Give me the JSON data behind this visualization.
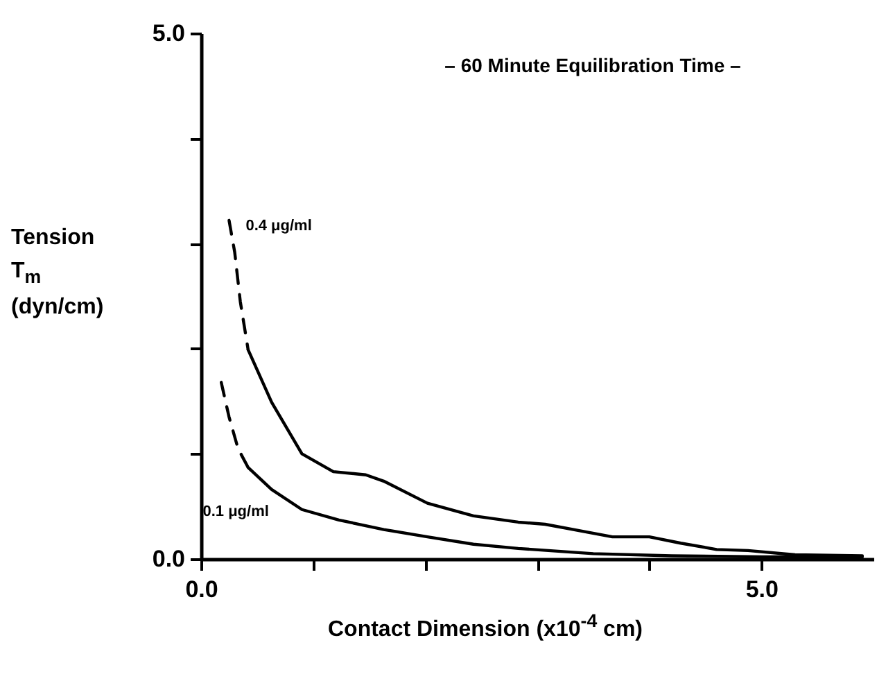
{
  "chart_data": {
    "type": "line",
    "title": "– 60 Minute Equilibration Time –",
    "xlabel": "Contact Dimension (x10$^{-4}$ cm)",
    "ylabel": "Tension T$_{m}$ (dyn/cm)",
    "xlim": [
      0,
      6
    ],
    "ylim": [
      0,
      5
    ],
    "xticks": [
      {
        "value": 0,
        "label": "0.0"
      },
      {
        "value": 1,
        "label": null
      },
      {
        "value": 2,
        "label": null
      },
      {
        "value": 3,
        "label": null
      },
      {
        "value": 4,
        "label": null
      },
      {
        "value": 5,
        "label": "5.0"
      }
    ],
    "yticks": [
      {
        "value": 0,
        "label": "0.0"
      },
      {
        "value": 1,
        "label": null
      },
      {
        "value": 2,
        "label": null
      },
      {
        "value": 3,
        "label": null
      },
      {
        "value": 4,
        "label": null
      },
      {
        "value": 5,
        "label": "5.0"
      }
    ],
    "grid": false,
    "marker": "none",
    "series": [
      {
        "name": "0.4 μg/ml",
        "color": "#000000",
        "line_style": "dashed",
        "x": [
          0.25,
          0.3,
          0.35,
          0.42
        ],
        "values": [
          3.22,
          2.92,
          2.45,
          1.99
        ]
      },
      {
        "color": "#000000",
        "line_style": "solid",
        "x": [
          0.42,
          0.63,
          0.9,
          1.18,
          1.47,
          1.63,
          2.02,
          2.43,
          2.83,
          3.07,
          3.67,
          4.0,
          4.28,
          4.6,
          4.88,
          5.3,
          5.9
        ],
        "values": [
          1.99,
          1.49,
          1.0,
          0.83,
          0.8,
          0.74,
          0.53,
          0.41,
          0.35,
          0.33,
          0.21,
          0.21,
          0.15,
          0.09,
          0.08,
          0.04,
          0.03
        ]
      },
      {
        "color": "#000000",
        "line_style": "dashed",
        "x": [
          0.18,
          0.25,
          0.33,
          0.42
        ],
        "values": [
          1.68,
          1.35,
          1.05,
          0.87
        ]
      },
      {
        "name": "0.1 μg/ml",
        "color": "#000000",
        "line_style": "solid",
        "x": [
          0.42,
          0.63,
          0.9,
          1.23,
          1.63,
          2.02,
          2.43,
          2.83,
          3.5,
          4.2,
          5.0,
          5.9
        ],
        "values": [
          0.87,
          0.66,
          0.47,
          0.37,
          0.28,
          0.21,
          0.14,
          0.1,
          0.05,
          0.03,
          0.02,
          0.02
        ]
      }
    ]
  }
}
